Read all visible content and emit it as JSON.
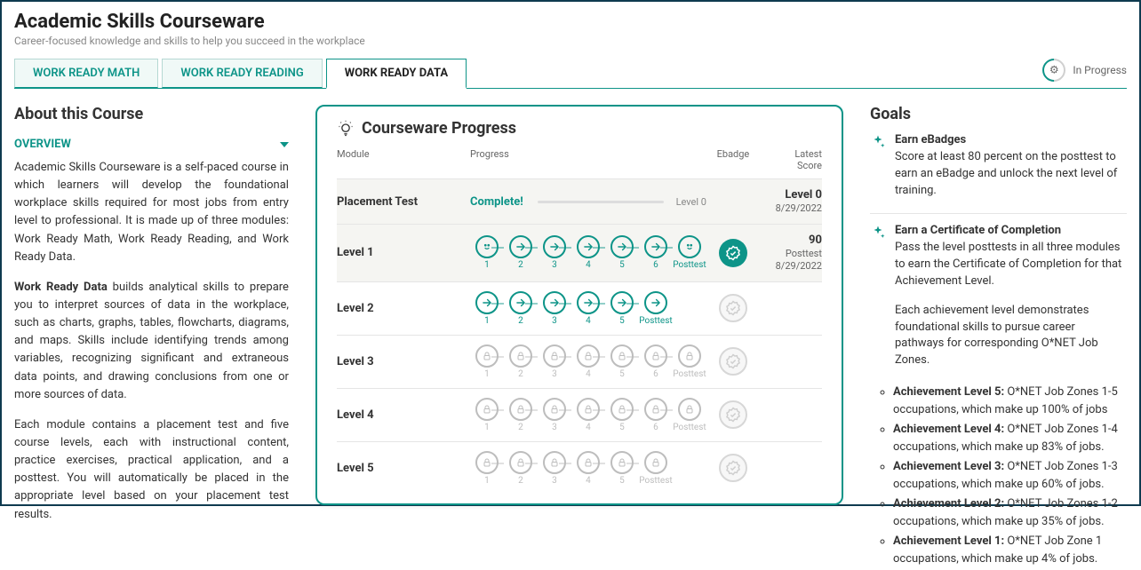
{
  "header": {
    "title": "Academic Skills Courseware",
    "subtitle": "Career-focused knowledge and skills to help you succeed in the workplace"
  },
  "tabs": [
    {
      "label": "WORK READY MATH",
      "active": false
    },
    {
      "label": "WORK READY READING",
      "active": false
    },
    {
      "label": "WORK READY DATA",
      "active": true
    }
  ],
  "progressIndicator": {
    "label": "In Progress"
  },
  "about": {
    "heading": "About this Course",
    "dropdown_label": "OVERVIEW",
    "p1": "Academic Skills Courseware is a self-paced course in which learners will develop the foundational workplace skills required for most jobs from entry level to professional. It is made up of three modules: Work Ready Math, Work Ready Reading, and Work Ready Data.",
    "p2_bold": "Work Ready Data",
    "p2_rest": " builds analytical skills to prepare you to interpret sources of data in the workplace, such as charts, graphs, tables, flowcharts, diagrams, and maps. Skills include identifying trends among variables, recognizing significant and extraneous data points, and drawing conclusions from one or more sources of data.",
    "p3": "Each module contains a placement test and five course levels, each with instructional content, practice exercises, practical application, and a posttest. You will automatically be placed in the appropriate level based on your placement test results."
  },
  "progressPanel": {
    "title": "Courseware Progress",
    "headers": {
      "module": "Module",
      "progress": "Progress",
      "ebadge": "Ebadge",
      "score": "Latest\nScore"
    },
    "rows": [
      {
        "name": "Placement Test",
        "type": "placement",
        "completeText": "Complete!",
        "barFillPct": 0,
        "levelText": "Level 0",
        "score_line1": "Level 0",
        "score_line2": "8/29/2022",
        "shaded": true
      },
      {
        "name": "Level 1",
        "type": "steps",
        "steps": [
          {
            "state": "done",
            "label": "1"
          },
          {
            "state": "open",
            "label": "2"
          },
          {
            "state": "open",
            "label": "3"
          },
          {
            "state": "open",
            "label": "4"
          },
          {
            "state": "open",
            "label": "5"
          },
          {
            "state": "open",
            "label": "6"
          },
          {
            "state": "done",
            "label": "Posttest"
          }
        ],
        "ebadge": "earned",
        "score_line1": "90",
        "score_line2": "Posttest",
        "score_line3": "8/29/2022",
        "shaded": true
      },
      {
        "name": "Level 2",
        "type": "steps",
        "steps": [
          {
            "state": "open",
            "label": "1"
          },
          {
            "state": "open",
            "label": "2"
          },
          {
            "state": "open",
            "label": "3"
          },
          {
            "state": "open",
            "label": "4"
          },
          {
            "state": "open",
            "label": "5"
          },
          {
            "state": "open",
            "label": "Posttest"
          }
        ],
        "ebadge": "empty"
      },
      {
        "name": "Level 3",
        "type": "steps",
        "steps": [
          {
            "state": "lock",
            "label": "1"
          },
          {
            "state": "lock",
            "label": "2"
          },
          {
            "state": "lock",
            "label": "3"
          },
          {
            "state": "lock",
            "label": "4"
          },
          {
            "state": "lock",
            "label": "5"
          },
          {
            "state": "lock",
            "label": "6"
          },
          {
            "state": "lock",
            "label": "Posttest"
          }
        ],
        "ebadge": "empty"
      },
      {
        "name": "Level 4",
        "type": "steps",
        "steps": [
          {
            "state": "lock",
            "label": "1"
          },
          {
            "state": "lock",
            "label": "2"
          },
          {
            "state": "lock",
            "label": "3"
          },
          {
            "state": "lock",
            "label": "4"
          },
          {
            "state": "lock",
            "label": "5"
          },
          {
            "state": "lock",
            "label": "6"
          },
          {
            "state": "lock",
            "label": "Posttest"
          }
        ],
        "ebadge": "empty"
      },
      {
        "name": "Level 5",
        "type": "steps",
        "steps": [
          {
            "state": "lock",
            "label": "1"
          },
          {
            "state": "lock",
            "label": "2"
          },
          {
            "state": "lock",
            "label": "3"
          },
          {
            "state": "lock",
            "label": "4"
          },
          {
            "state": "lock",
            "label": "5"
          },
          {
            "state": "lock",
            "label": "Posttest"
          }
        ],
        "ebadge": "empty"
      }
    ]
  },
  "goals": {
    "heading": "Goals",
    "items": [
      {
        "title": "Earn eBadges",
        "body": "Score at least 80 percent on the posttest to earn an eBadge and unlock the next level of training."
      },
      {
        "title": "Earn a Certificate of Completion",
        "body": "Pass the level posttests in all three modules to earn the Certificate of Completion for that Achievement Level.",
        "body2": "Each achievement level demonstrates foundational skills to pursue career pathways for corresponding O*NET Job Zones."
      }
    ],
    "achievements": [
      {
        "bold": "Achievement Level 5:",
        "text": " O*NET Job Zones 1-5 occupations, which make up 100% of jobs"
      },
      {
        "bold": "Achievement Level 4:",
        "text": " O*NET Job Zones 1-4 occupations, which make up 83% of jobs."
      },
      {
        "bold": "Achievement Level 3:",
        "text": " O*NET Job Zones 1-3 occupations, which make up 60% of jobs."
      },
      {
        "bold": "Achievement Level 2:",
        "text": " O*NET Job Zones 1-2 occupations, which make up 35% of jobs."
      },
      {
        "bold": "Achievement Level 1:",
        "text": " O*NET Job Zone 1 occupations, which make up 4% of jobs."
      }
    ]
  },
  "colors": {
    "accent": "#0d9488",
    "locked": "#bdbdbd",
    "border": "#e5e5e5"
  }
}
